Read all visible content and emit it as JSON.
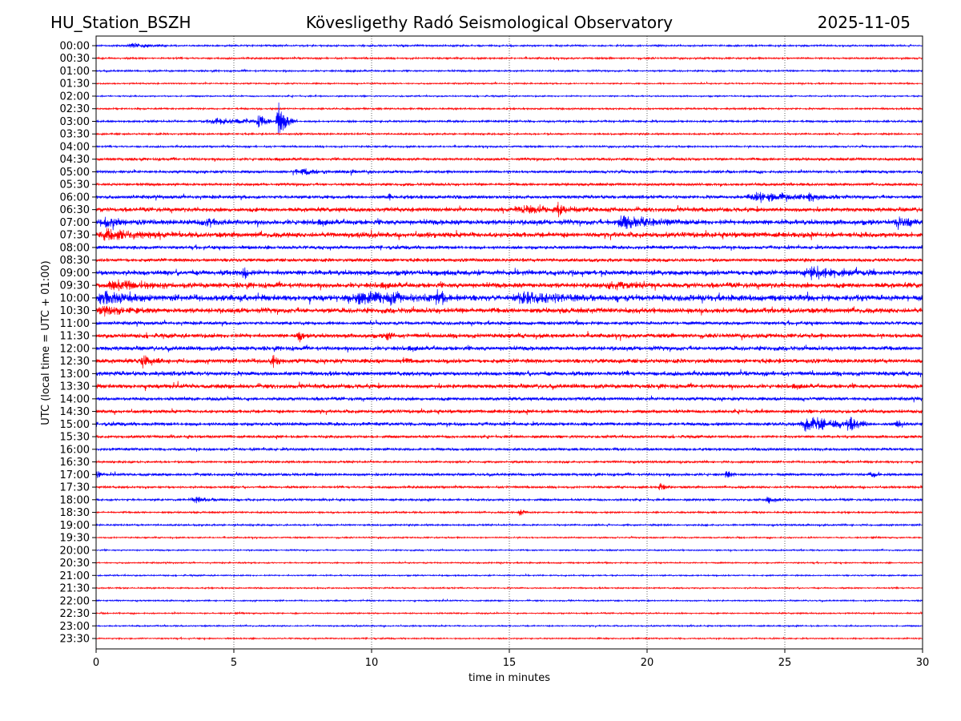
{
  "header": {
    "station": "HU_Station_BSZH",
    "observatory": "Kövesligethy Radó Seismological Observatory",
    "date": "2025-11-05"
  },
  "chart_data": {
    "type": "line",
    "title": "Kövesligethy Radó Seismological Observatory",
    "xlabel": "time in minutes",
    "ylabel": "UTC (local time = UTC + 01:00)",
    "xlim": [
      0,
      30
    ],
    "xticks": [
      "0",
      "5",
      "10",
      "15",
      "20",
      "25",
      "30"
    ],
    "grid": "vertical dotted at each x tick",
    "colors": [
      "#0000ff",
      "#ff0000"
    ],
    "rows": [
      "00:00",
      "00:30",
      "01:00",
      "01:30",
      "02:00",
      "02:30",
      "03:00",
      "03:30",
      "04:00",
      "04:30",
      "05:00",
      "05:30",
      "06:00",
      "06:30",
      "07:00",
      "07:30",
      "08:00",
      "08:30",
      "09:00",
      "09:30",
      "10:00",
      "10:30",
      "11:00",
      "11:30",
      "12:00",
      "12:30",
      "13:00",
      "13:30",
      "14:00",
      "14:30",
      "15:00",
      "15:30",
      "16:00",
      "16:30",
      "17:00",
      "17:30",
      "18:00",
      "18:30",
      "19:00",
      "19:30",
      "20:00",
      "20:30",
      "21:00",
      "21:30",
      "22:00",
      "22:30",
      "23:00",
      "23:30"
    ],
    "noise_level": [
      1,
      1,
      1,
      0.8,
      0.8,
      1,
      1.2,
      1,
      1,
      1.5,
      1.5,
      1.5,
      2,
      2.5,
      3,
      3,
      2,
      2,
      3,
      3,
      3.5,
      3,
      2,
      2.5,
      2.5,
      2.5,
      2.5,
      2.5,
      2,
      2,
      2,
      1.5,
      1.5,
      1.2,
      1.5,
      1.2,
      1.2,
      1,
      1,
      0.8,
      0.8,
      0.8,
      0.8,
      0.8,
      0.8,
      0.8,
      0.8,
      0.8
    ],
    "events": [
      {
        "row": "00:00",
        "start_min": 1.1,
        "amplitude": 4,
        "duration_min": 1.5
      },
      {
        "row": "03:00",
        "start_min": 3.8,
        "amplitude": 5,
        "duration_min": 3.5
      },
      {
        "row": "03:00",
        "start_min": 5.8,
        "amplitude": 12,
        "duration_min": 0.6
      },
      {
        "row": "03:00",
        "start_min": 6.5,
        "amplitude": 25,
        "duration_min": 0.8
      },
      {
        "row": "05:00",
        "start_min": 7.0,
        "amplitude": 4,
        "duration_min": 2.5
      },
      {
        "row": "05:00",
        "start_min": 9.2,
        "amplitude": 5,
        "duration_min": 0.3
      },
      {
        "row": "06:00",
        "start_min": 10.6,
        "amplitude": 5,
        "duration_min": 0.3
      },
      {
        "row": "06:00",
        "start_min": 23.5,
        "amplitude": 6,
        "duration_min": 4
      },
      {
        "row": "06:00",
        "start_min": 25.8,
        "amplitude": 9,
        "duration_min": 0.5
      },
      {
        "row": "06:30",
        "start_min": 15.0,
        "amplitude": 5,
        "duration_min": 4
      },
      {
        "row": "06:30",
        "start_min": 16.7,
        "amplitude": 10,
        "duration_min": 0.4
      },
      {
        "row": "07:00",
        "start_min": 0,
        "amplitude": 6,
        "duration_min": 1.5
      },
      {
        "row": "07:00",
        "start_min": 3.8,
        "amplitude": 5,
        "duration_min": 1.2
      },
      {
        "row": "07:00",
        "start_min": 18.7,
        "amplitude": 8,
        "duration_min": 3
      },
      {
        "row": "07:00",
        "start_min": 29,
        "amplitude": 9,
        "duration_min": 1
      },
      {
        "row": "07:30",
        "start_min": 0,
        "amplitude": 7,
        "duration_min": 3
      },
      {
        "row": "09:00",
        "start_min": 5.3,
        "amplitude": 12,
        "duration_min": 0.4
      },
      {
        "row": "09:00",
        "start_min": 25.5,
        "amplitude": 8,
        "duration_min": 3
      },
      {
        "row": "09:30",
        "start_min": 0.3,
        "amplitude": 6,
        "duration_min": 2.5
      },
      {
        "row": "09:30",
        "start_min": 18.5,
        "amplitude": 5,
        "duration_min": 2
      },
      {
        "row": "10:00",
        "start_min": 0,
        "amplitude": 8,
        "duration_min": 2
      },
      {
        "row": "10:00",
        "start_min": 9,
        "amplitude": 8,
        "duration_min": 4
      },
      {
        "row": "10:00",
        "start_min": 10.6,
        "amplitude": 12,
        "duration_min": 0.5
      },
      {
        "row": "10:00",
        "start_min": 12.2,
        "amplitude": 10,
        "duration_min": 1
      },
      {
        "row": "10:00",
        "start_min": 15,
        "amplitude": 7,
        "duration_min": 4
      },
      {
        "row": "10:30",
        "start_min": 0,
        "amplitude": 7,
        "duration_min": 2
      },
      {
        "row": "11:30",
        "start_min": 7.3,
        "amplitude": 9,
        "duration_min": 0.5
      },
      {
        "row": "11:30",
        "start_min": 10.5,
        "amplitude": 6,
        "duration_min": 0.5
      },
      {
        "row": "12:30",
        "start_min": 1.6,
        "amplitude": 8,
        "duration_min": 0.8
      },
      {
        "row": "12:30",
        "start_min": 6.3,
        "amplitude": 10,
        "duration_min": 0.5
      },
      {
        "row": "12:30",
        "start_min": 11.1,
        "amplitude": 6,
        "duration_min": 0.5
      },
      {
        "row": "15:00",
        "start_min": 25.5,
        "amplitude": 12,
        "duration_min": 2.5
      },
      {
        "row": "15:00",
        "start_min": 27.2,
        "amplitude": 11,
        "duration_min": 0.8
      },
      {
        "row": "15:00",
        "start_min": 29,
        "amplitude": 9,
        "duration_min": 0.5
      },
      {
        "row": "17:00",
        "start_min": 0,
        "amplitude": 6,
        "duration_min": 0.3
      },
      {
        "row": "17:00",
        "start_min": 22.8,
        "amplitude": 5,
        "duration_min": 0.5
      },
      {
        "row": "17:00",
        "start_min": 28,
        "amplitude": 5,
        "duration_min": 0.5
      },
      {
        "row": "17:30",
        "start_min": 20.4,
        "amplitude": 7,
        "duration_min": 0.5
      },
      {
        "row": "18:00",
        "start_min": 3.3,
        "amplitude": 4,
        "duration_min": 2
      },
      {
        "row": "18:00",
        "start_min": 24.3,
        "amplitude": 6,
        "duration_min": 0.8
      },
      {
        "row": "18:30",
        "start_min": 15.3,
        "amplitude": 5,
        "duration_min": 0.5
      }
    ]
  }
}
